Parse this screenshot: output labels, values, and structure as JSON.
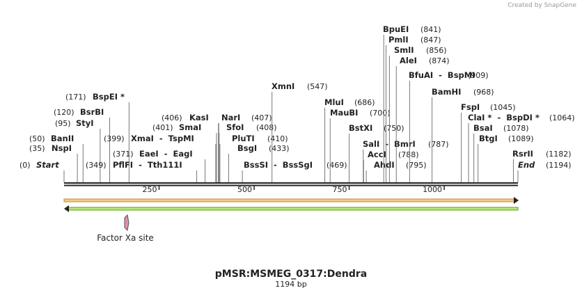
{
  "credit": "Created by SnapGene",
  "title": "pMSR:MSMEG_0317:Dendra",
  "subtitle": "1194 bp",
  "map": {
    "length": 1194,
    "ticks": [
      250,
      500,
      750,
      1000
    ]
  },
  "features": [
    {
      "label": "Factor Xa site"
    }
  ],
  "sites": [
    {
      "name": "Start",
      "pos": 0,
      "pos_label": "(0)"
    },
    {
      "name": "NspI",
      "pos": 35,
      "pos_label": "(35)"
    },
    {
      "name": "BanII",
      "pos": 50,
      "pos_label": "(50)"
    },
    {
      "name": "StyI",
      "pos": 95,
      "pos_label": "(95)"
    },
    {
      "name": "BsrBI",
      "pos": 120,
      "pos_label": "(120)"
    },
    {
      "name": "BspEI *",
      "pos": 171,
      "pos_label": "(171)"
    },
    {
      "name": "PflFI  -  Tth111I",
      "pos": 349,
      "pos_label": "(349)"
    },
    {
      "name": "EaeI  -  EagI",
      "pos": 371,
      "pos_label": "(371)"
    },
    {
      "name": "XmaI  -  TspMI",
      "pos": 399,
      "pos_label": "(399)"
    },
    {
      "name": "SmaI",
      "pos": 401,
      "pos_label": "(401)"
    },
    {
      "name": "KasI",
      "pos": 406,
      "pos_label": "(406)"
    },
    {
      "name": "NarI",
      "pos": 407,
      "pos_label": "(407)"
    },
    {
      "name": "SfoI",
      "pos": 408,
      "pos_label": "(408)"
    },
    {
      "name": "PluTI",
      "pos": 410,
      "pos_label": "(410)"
    },
    {
      "name": "BsgI",
      "pos": 433,
      "pos_label": "(433)"
    },
    {
      "name": "BssSI  -  BssSgI",
      "pos": 469,
      "pos_label": "(469)"
    },
    {
      "name": "XmnI",
      "pos": 547,
      "pos_label": "(547)"
    },
    {
      "name": "MluI",
      "pos": 686,
      "pos_label": "(686)"
    },
    {
      "name": "MauBI",
      "pos": 700,
      "pos_label": "(700)"
    },
    {
      "name": "BstXI",
      "pos": 750,
      "pos_label": "(750)"
    },
    {
      "name": "SalI  -  BmrI",
      "pos": 787,
      "pos_label": "(787)"
    },
    {
      "name": "AccI",
      "pos": 788,
      "pos_label": "(788)"
    },
    {
      "name": "AhdI",
      "pos": 795,
      "pos_label": "(795)"
    },
    {
      "name": "BpuEI",
      "pos": 841,
      "pos_label": "(841)"
    },
    {
      "name": "PmlI",
      "pos": 847,
      "pos_label": "(847)"
    },
    {
      "name": "SmlI",
      "pos": 856,
      "pos_label": "(856)"
    },
    {
      "name": "AleI",
      "pos": 874,
      "pos_label": "(874)"
    },
    {
      "name": "BfuAI  -  BspMI",
      "pos": 909,
      "pos_label": "(909)"
    },
    {
      "name": "BamHI",
      "pos": 968,
      "pos_label": "(968)"
    },
    {
      "name": "FspI",
      "pos": 1045,
      "pos_label": "(1045)"
    },
    {
      "name": "ClaI *  -  BspDI *",
      "pos": 1064,
      "pos_label": "(1064)"
    },
    {
      "name": "BsaI",
      "pos": 1078,
      "pos_label": "(1078)"
    },
    {
      "name": "BtgI",
      "pos": 1089,
      "pos_label": "(1089)"
    },
    {
      "name": "RsrII",
      "pos": 1182,
      "pos_label": "(1182)"
    },
    {
      "name": "End",
      "pos": 1194,
      "pos_label": "(1194)"
    }
  ]
}
